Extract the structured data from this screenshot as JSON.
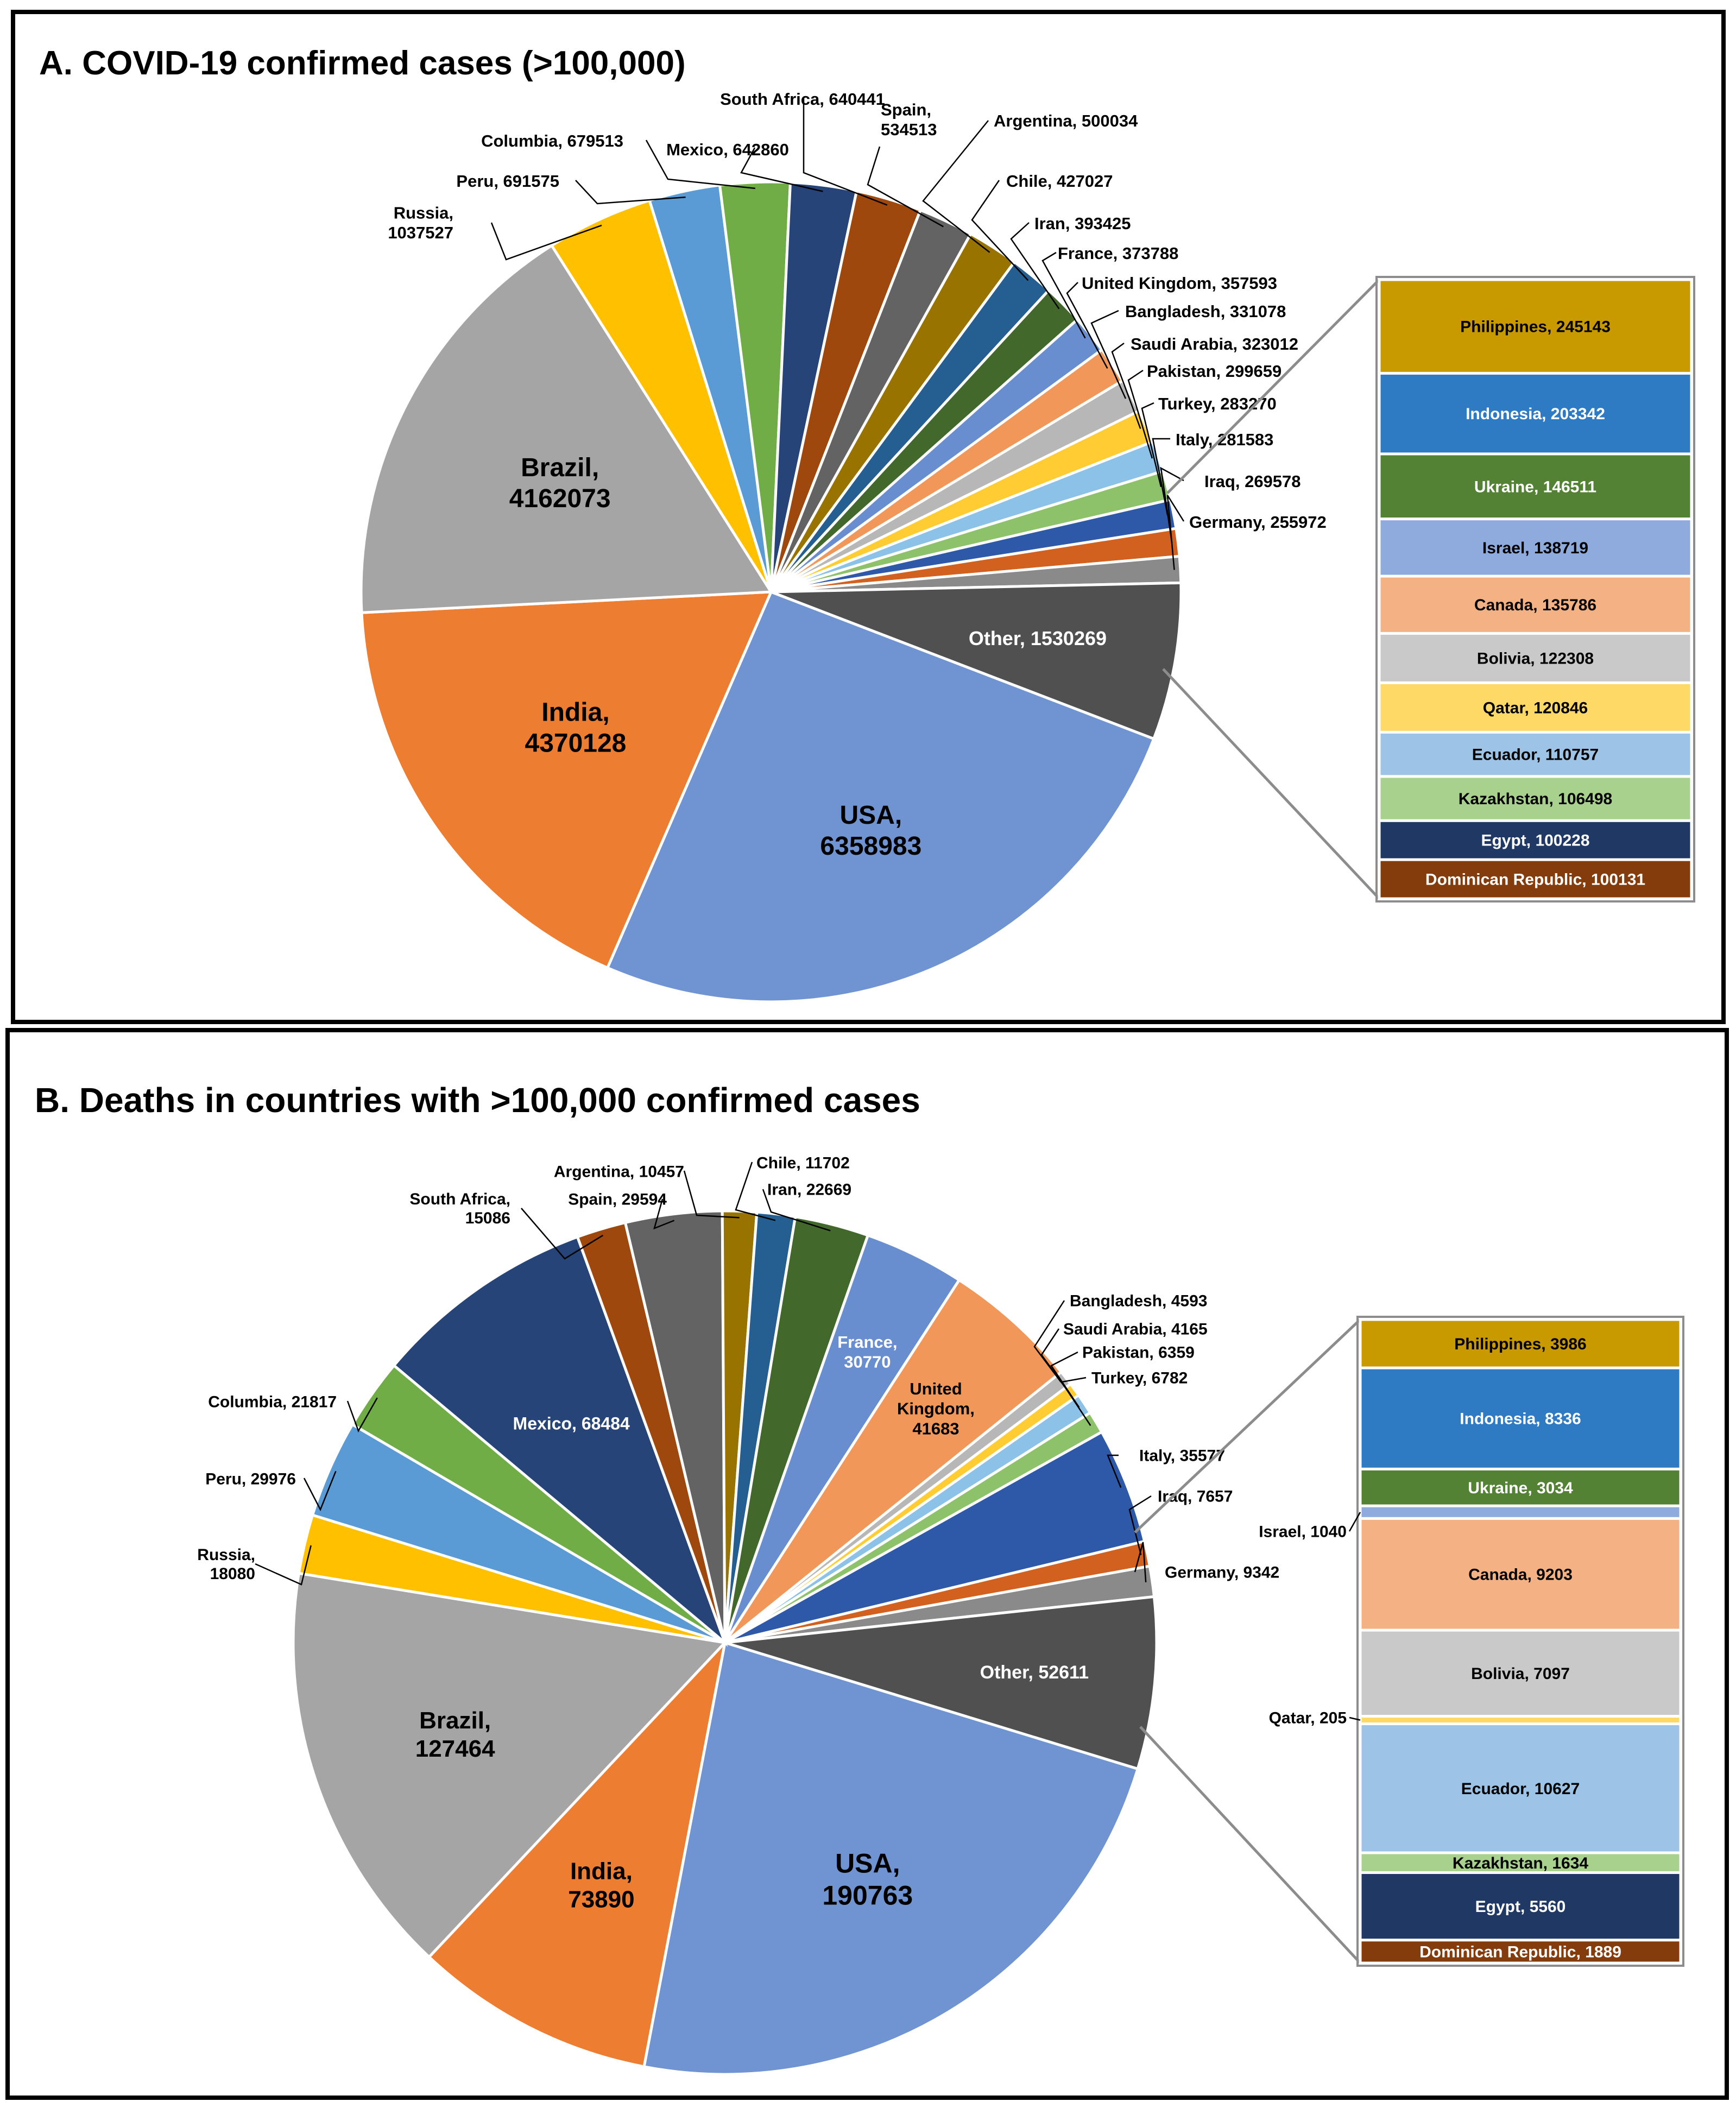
{
  "colors": {
    "USA": "#7094d2",
    "India": "#ed7d31",
    "Brazil": "#a5a5a5",
    "Russia": "#ffc000",
    "Peru": "#5b9bd5",
    "Columbia": "#70ad47",
    "Mexico": "#264478",
    "South Africa": "#9e480e",
    "Spain": "#636363",
    "Argentina": "#997300",
    "Chile": "#255e91",
    "Iran": "#43682b",
    "France": "#698ed0",
    "United Kingdom": "#f1975a",
    "Bangladesh": "#b7b7b7",
    "Saudi Arabia": "#ffcd33",
    "Pakistan": "#8cc2e8",
    "Turkey": "#8dc26b",
    "Italy": "#2e58a8",
    "Iraq": "#d2601e",
    "Germany": "#8a8a8a",
    "Other": "#505050",
    "Philippines": "#c99a00",
    "Indonesia": "#2e7bc4",
    "Ukraine": "#548235",
    "Israel": "#8faadc",
    "Canada": "#f4b183",
    "Bolivia": "#c9c9c9",
    "Qatar": "#ffd966",
    "Ecuador": "#9dc3e6",
    "Kazakhstan": "#a9d18e",
    "Egypt": "#203864",
    "Dominican Republic": "#843c0c"
  },
  "chart_data": [
    {
      "type": "pie",
      "title": "A. COVID-19 confirmed cases (>100,000)",
      "slices": [
        {
          "name": "USA",
          "value": 6358983,
          "label": "USA,\n6358983"
        },
        {
          "name": "India",
          "value": 4370128,
          "label": "India,\n4370128"
        },
        {
          "name": "Brazil",
          "value": 4162073,
          "label": "Brazil,\n4162073"
        },
        {
          "name": "Russia",
          "value": 1037527,
          "label": "Russia,\n1037527"
        },
        {
          "name": "Peru",
          "value": 691575,
          "label": "Peru, 691575"
        },
        {
          "name": "Columbia",
          "value": 679513,
          "label": "Columbia, 679513"
        },
        {
          "name": "Mexico",
          "value": 642860,
          "label": "Mexico, 642860"
        },
        {
          "name": "South Africa",
          "value": 640441,
          "label": "South Africa, 640441"
        },
        {
          "name": "Spain",
          "value": 534513,
          "label": "Spain,\n534513"
        },
        {
          "name": "Argentina",
          "value": 500034,
          "label": "Argentina, 500034"
        },
        {
          "name": "Chile",
          "value": 427027,
          "label": "Chile, 427027"
        },
        {
          "name": "Iran",
          "value": 393425,
          "label": "Iran, 393425"
        },
        {
          "name": "France",
          "value": 373788,
          "label": "France, 373788"
        },
        {
          "name": "United Kingdom",
          "value": 357593,
          "label": "United Kingdom, 357593"
        },
        {
          "name": "Bangladesh",
          "value": 331078,
          "label": "Bangladesh, 331078"
        },
        {
          "name": "Saudi Arabia",
          "value": 323012,
          "label": "Saudi Arabia, 323012"
        },
        {
          "name": "Pakistan",
          "value": 299659,
          "label": "Pakistan, 299659"
        },
        {
          "name": "Turkey",
          "value": 283270,
          "label": "Turkey, 283270"
        },
        {
          "name": "Italy",
          "value": 281583,
          "label": "Italy, 281583"
        },
        {
          "name": "Iraq",
          "value": 269578,
          "label": "Iraq, 269578"
        },
        {
          "name": "Germany",
          "value": 255972,
          "label": "Germany, 255972"
        },
        {
          "name": "Other",
          "value": 1530269,
          "label": "Other, 1530269"
        }
      ],
      "other_breakdown": [
        {
          "name": "Philippines",
          "value": 245143,
          "label": "Philippines, 245143"
        },
        {
          "name": "Indonesia",
          "value": 203342,
          "label": "Indonesia, 203342"
        },
        {
          "name": "Ukraine",
          "value": 146511,
          "label": "Ukraine, 146511"
        },
        {
          "name": "Israel",
          "value": 138719,
          "label": "Israel, 138719"
        },
        {
          "name": "Canada",
          "value": 135786,
          "label": "Canada, 135786"
        },
        {
          "name": "Bolivia",
          "value": 122308,
          "label": "Bolivia, 122308"
        },
        {
          "name": "Qatar",
          "value": 120846,
          "label": "Qatar, 120846"
        },
        {
          "name": "Ecuador",
          "value": 110757,
          "label": "Ecuador, 110757"
        },
        {
          "name": "Kazakhstan",
          "value": 106498,
          "label": "Kazakhstan, 106498"
        },
        {
          "name": "Egypt",
          "value": 100228,
          "label": "Egypt, 100228"
        },
        {
          "name": "Dominican Republic",
          "value": 100131,
          "label": "Dominican Republic, 100131"
        }
      ]
    },
    {
      "type": "pie",
      "title": "B.  Deaths in countries with >100,000 confirmed cases",
      "slices": [
        {
          "name": "USA",
          "value": 190763,
          "label": "USA,\n190763"
        },
        {
          "name": "India",
          "value": 73890,
          "label": "India,\n73890"
        },
        {
          "name": "Brazil",
          "value": 127464,
          "label": "Brazil,\n127464"
        },
        {
          "name": "Russia",
          "value": 18080,
          "label": "Russia,\n18080"
        },
        {
          "name": "Peru",
          "value": 29976,
          "label": "Peru, 29976"
        },
        {
          "name": "Columbia",
          "value": 21817,
          "label": "Columbia, 21817"
        },
        {
          "name": "Mexico",
          "value": 68484,
          "label": "Mexico, 68484"
        },
        {
          "name": "South Africa",
          "value": 15086,
          "label": "South Africa,\n15086"
        },
        {
          "name": "Spain",
          "value": 29594,
          "label": "Spain, 29594"
        },
        {
          "name": "Argentina",
          "value": 10457,
          "label": "Argentina, 10457"
        },
        {
          "name": "Chile",
          "value": 11702,
          "label": "Chile, 11702"
        },
        {
          "name": "Iran",
          "value": 22669,
          "label": "Iran, 22669"
        },
        {
          "name": "France",
          "value": 30770,
          "label": "France,\n30770"
        },
        {
          "name": "United Kingdom",
          "value": 41683,
          "label": "United\nKingdom,\n41683"
        },
        {
          "name": "Bangladesh",
          "value": 4593,
          "label": "Bangladesh, 4593"
        },
        {
          "name": "Saudi Arabia",
          "value": 4165,
          "label": "Saudi Arabia, 4165"
        },
        {
          "name": "Pakistan",
          "value": 6359,
          "label": "Pakistan, 6359"
        },
        {
          "name": "Turkey",
          "value": 6782,
          "label": "Turkey, 6782"
        },
        {
          "name": "Italy",
          "value": 35577,
          "label": "Italy, 35577"
        },
        {
          "name": "Iraq",
          "value": 7657,
          "label": "Iraq, 7657"
        },
        {
          "name": "Germany",
          "value": 9342,
          "label": "Germany, 9342"
        },
        {
          "name": "Other",
          "value": 52611,
          "label": "Other, 52611"
        }
      ],
      "other_breakdown": [
        {
          "name": "Philippines",
          "value": 3986,
          "label": "Philippines, 3986"
        },
        {
          "name": "Indonesia",
          "value": 8336,
          "label": "Indonesia, 8336"
        },
        {
          "name": "Ukraine",
          "value": 3034,
          "label": "Ukraine, 3034"
        },
        {
          "name": "Israel",
          "value": 1040,
          "label": "Israel, 1040"
        },
        {
          "name": "Canada",
          "value": 9203,
          "label": "Canada, 9203"
        },
        {
          "name": "Bolivia",
          "value": 7097,
          "label": "Bolivia, 7097"
        },
        {
          "name": "Qatar",
          "value": 205,
          "label": "Qatar, 205"
        },
        {
          "name": "Ecuador",
          "value": 10627,
          "label": "Ecuador, 10627"
        },
        {
          "name": "Kazakhstan",
          "value": 1634,
          "label": "Kazakhstan, 1634"
        },
        {
          "name": "Egypt",
          "value": 5560,
          "label": "Egypt, 5560"
        },
        {
          "name": "Dominican Republic",
          "value": 1889,
          "label": "Dominican Republic, 1889"
        }
      ]
    }
  ]
}
